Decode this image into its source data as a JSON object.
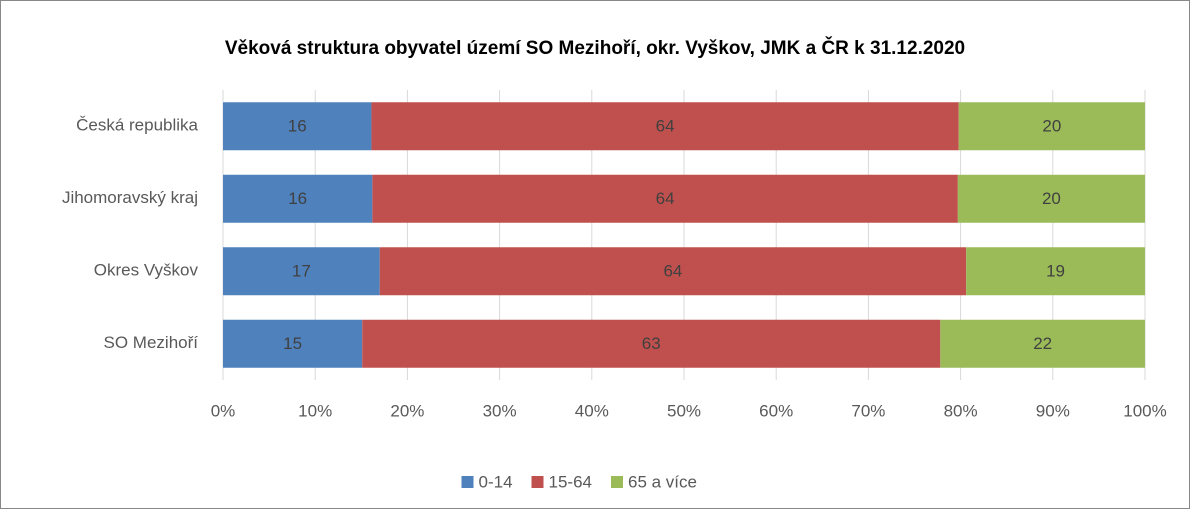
{
  "chart_data": {
    "type": "stacked_bar_horizontal",
    "title": "Věková struktura obyvatel území SO Mezihoří, okr. Vyškov, JMK a ČR k 31.12.2020",
    "categories": [
      "Česká republika",
      "Jihomoravský kraj",
      "Okres Vyškov",
      "SO Mezihoří"
    ],
    "series": [
      {
        "name": "0-14",
        "color": "#4f81bd",
        "values": [
          16.1,
          16.2,
          17.0,
          15.1
        ],
        "value_labels": [
          "16",
          "16",
          "17",
          "15"
        ]
      },
      {
        "name": "15-64",
        "color": "#c0504d",
        "values": [
          63.7,
          63.5,
          63.6,
          62.7
        ],
        "value_labels": [
          "64",
          "64",
          "64",
          "63"
        ]
      },
      {
        "name": "65 a více",
        "color": "#9bbb59",
        "values": [
          20.2,
          20.3,
          19.4,
          22.2
        ],
        "value_labels": [
          "20",
          "20",
          "19",
          "22"
        ]
      }
    ],
    "xlim": [
      0,
      100
    ],
    "xticks": [
      {
        "value": 0,
        "label": "0%"
      },
      {
        "value": 10,
        "label": "10%"
      },
      {
        "value": 20,
        "label": "20%"
      },
      {
        "value": 30,
        "label": "30%"
      },
      {
        "value": 40,
        "label": "40%"
      },
      {
        "value": 50,
        "label": "50%"
      },
      {
        "value": 60,
        "label": "60%"
      },
      {
        "value": 70,
        "label": "70%"
      },
      {
        "value": 80,
        "label": "80%"
      },
      {
        "value": 90,
        "label": "90%"
      },
      {
        "value": 100,
        "label": "100%"
      }
    ],
    "grid": true,
    "legend": "bottom"
  }
}
